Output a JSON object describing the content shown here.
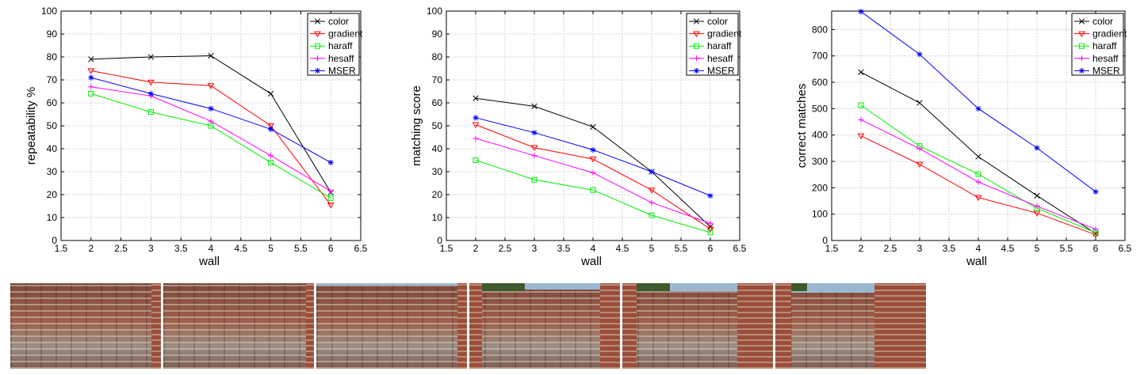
{
  "chart_data": [
    {
      "type": "line",
      "xlabel": "wall",
      "ylabel": "repeatability %",
      "xlim": [
        1.5,
        6.5
      ],
      "ylim": [
        0,
        100
      ],
      "xticks": [
        "1.5",
        "2",
        "2.5",
        "3",
        "3.5",
        "4",
        "4.5",
        "5",
        "5.5",
        "6",
        "6.5"
      ],
      "yticks": [
        "0",
        "10",
        "20",
        "30",
        "40",
        "50",
        "60",
        "70",
        "80",
        "90",
        "100"
      ],
      "grid": true,
      "legend": "top-right",
      "x": [
        2,
        3,
        4,
        5,
        6
      ],
      "series": [
        {
          "name": "color",
          "color": "#000000",
          "marker": "x",
          "values": [
            79,
            80,
            80.5,
            64,
            21
          ]
        },
        {
          "name": "gradient",
          "color": "#ff0000",
          "marker": "triangle-down",
          "values": [
            74,
            69,
            67.5,
            50,
            15.5
          ]
        },
        {
          "name": "haraff",
          "color": "#00ee00",
          "marker": "square",
          "values": [
            64,
            56,
            50,
            34,
            18.5
          ]
        },
        {
          "name": "hesaff",
          "color": "#ff00ff",
          "marker": "plus",
          "values": [
            67,
            63,
            52,
            37,
            21.5
          ]
        },
        {
          "name": "MSER",
          "color": "#0000ff",
          "marker": "star",
          "values": [
            71,
            64,
            57.5,
            48.5,
            34
          ]
        }
      ]
    },
    {
      "type": "line",
      "xlabel": "wall",
      "ylabel": "matching score",
      "xlim": [
        1.5,
        6.5
      ],
      "ylim": [
        0,
        100
      ],
      "xticks": [
        "1.5",
        "2",
        "2.5",
        "3",
        "3.5",
        "4",
        "4.5",
        "5",
        "5.5",
        "6",
        "6.5"
      ],
      "yticks": [
        "0",
        "10",
        "20",
        "30",
        "40",
        "50",
        "60",
        "70",
        "80",
        "90",
        "100"
      ],
      "grid": true,
      "legend": "top-right",
      "x": [
        2,
        3,
        4,
        5,
        6
      ],
      "series": [
        {
          "name": "color",
          "color": "#000000",
          "marker": "x",
          "values": [
            62,
            58.5,
            49.5,
            30,
            6
          ]
        },
        {
          "name": "gradient",
          "color": "#ff0000",
          "marker": "triangle-down",
          "values": [
            50.5,
            40.5,
            35.5,
            22,
            5
          ]
        },
        {
          "name": "haraff",
          "color": "#00ee00",
          "marker": "square",
          "values": [
            35,
            26.5,
            22,
            11,
            3.5
          ]
        },
        {
          "name": "hesaff",
          "color": "#ff00ff",
          "marker": "plus",
          "values": [
            44.5,
            37,
            29.5,
            16.5,
            7.5
          ]
        },
        {
          "name": "MSER",
          "color": "#0000ff",
          "marker": "star",
          "values": [
            53.5,
            47,
            39.5,
            30,
            19.5
          ]
        }
      ]
    },
    {
      "type": "line",
      "xlabel": "wall",
      "ylabel": "correct matches",
      "xlim": [
        1.5,
        6.5
      ],
      "ylim": [
        0,
        870
      ],
      "xticks": [
        "1.5",
        "2",
        "2.5",
        "3",
        "3.5",
        "4",
        "4.5",
        "5",
        "5.5",
        "6",
        "6.5"
      ],
      "yticks": [
        "0",
        "100",
        "200",
        "300",
        "400",
        "500",
        "600",
        "700",
        "800"
      ],
      "grid": true,
      "legend": "top-right",
      "x": [
        2,
        3,
        4,
        5,
        6
      ],
      "series": [
        {
          "name": "color",
          "color": "#000000",
          "marker": "x",
          "values": [
            638,
            522,
            318,
            170,
            27
          ]
        },
        {
          "name": "gradient",
          "color": "#ff0000",
          "marker": "triangle-down",
          "values": [
            397,
            289,
            163,
            104,
            22
          ]
        },
        {
          "name": "haraff",
          "color": "#00ee00",
          "marker": "square",
          "values": [
            513,
            358,
            252,
            122,
            30
          ]
        },
        {
          "name": "hesaff",
          "color": "#ff00ff",
          "marker": "plus",
          "values": [
            458,
            348,
            222,
            130,
            43
          ]
        },
        {
          "name": "MSER",
          "color": "#0000ff",
          "marker": "star",
          "values": [
            868,
            706,
            500,
            351,
            185
          ]
        }
      ]
    }
  ],
  "photos": [
    "wall-image-1",
    "wall-image-2",
    "wall-image-3",
    "wall-image-4",
    "wall-image-5",
    "wall-image-6"
  ]
}
